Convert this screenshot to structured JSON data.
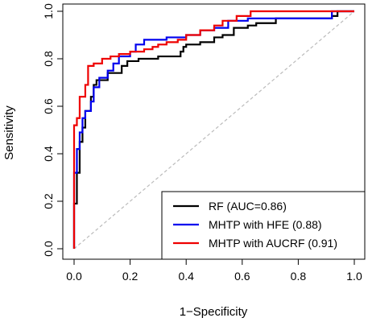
{
  "chart_data": {
    "type": "line",
    "title": "",
    "xlabel": "1−Specificity",
    "ylabel": "Sensitivity",
    "xlim": [
      0,
      1
    ],
    "ylim": [
      0,
      1
    ],
    "xticks": [
      "0.0",
      "0.2",
      "0.4",
      "0.6",
      "0.8",
      "1.0"
    ],
    "yticks": [
      "0.0",
      "0.2",
      "0.4",
      "0.6",
      "0.8",
      "1.0"
    ],
    "grid": false,
    "legend_position": "bottom-right",
    "reference_line": {
      "from": [
        0,
        0
      ],
      "to": [
        1,
        1
      ],
      "color": "#bbbbbb",
      "style": "dashed"
    },
    "series": [
      {
        "name": "RF (AUC=0.86)",
        "color": "#000000",
        "points": [
          [
            0,
            0
          ],
          [
            0,
            0.19
          ],
          [
            0.01,
            0.19
          ],
          [
            0.01,
            0.32
          ],
          [
            0.02,
            0.32
          ],
          [
            0.02,
            0.45
          ],
          [
            0.03,
            0.45
          ],
          [
            0.03,
            0.51
          ],
          [
            0.04,
            0.51
          ],
          [
            0.04,
            0.58
          ],
          [
            0.06,
            0.58
          ],
          [
            0.06,
            0.64
          ],
          [
            0.07,
            0.64
          ],
          [
            0.07,
            0.69
          ],
          [
            0.08,
            0.69
          ],
          [
            0.08,
            0.71
          ],
          [
            0.12,
            0.71
          ],
          [
            0.12,
            0.74
          ],
          [
            0.17,
            0.74
          ],
          [
            0.17,
            0.77
          ],
          [
            0.19,
            0.77
          ],
          [
            0.19,
            0.79
          ],
          [
            0.23,
            0.79
          ],
          [
            0.23,
            0.8
          ],
          [
            0.3,
            0.8
          ],
          [
            0.3,
            0.81
          ],
          [
            0.38,
            0.81
          ],
          [
            0.38,
            0.83
          ],
          [
            0.39,
            0.83
          ],
          [
            0.39,
            0.85
          ],
          [
            0.4,
            0.85
          ],
          [
            0.4,
            0.86
          ],
          [
            0.45,
            0.86
          ],
          [
            0.45,
            0.87
          ],
          [
            0.5,
            0.87
          ],
          [
            0.5,
            0.89
          ],
          [
            0.53,
            0.89
          ],
          [
            0.53,
            0.9
          ],
          [
            0.57,
            0.9
          ],
          [
            0.57,
            0.93
          ],
          [
            0.62,
            0.93
          ],
          [
            0.62,
            0.94
          ],
          [
            0.65,
            0.94
          ],
          [
            0.65,
            0.95
          ],
          [
            0.72,
            0.95
          ],
          [
            0.72,
            0.97
          ],
          [
            0.92,
            0.97
          ],
          [
            0.92,
            0.98
          ],
          [
            0.94,
            0.98
          ],
          [
            0.94,
            1
          ],
          [
            1,
            1
          ]
        ]
      },
      {
        "name": "MHTP with HFE (0.88)",
        "color": "#0000ee",
        "points": [
          [
            0,
            0
          ],
          [
            0,
            0.32
          ],
          [
            0.01,
            0.32
          ],
          [
            0.01,
            0.42
          ],
          [
            0.02,
            0.42
          ],
          [
            0.02,
            0.49
          ],
          [
            0.03,
            0.49
          ],
          [
            0.03,
            0.55
          ],
          [
            0.04,
            0.55
          ],
          [
            0.04,
            0.58
          ],
          [
            0.06,
            0.58
          ],
          [
            0.06,
            0.62
          ],
          [
            0.07,
            0.62
          ],
          [
            0.07,
            0.68
          ],
          [
            0.09,
            0.68
          ],
          [
            0.09,
            0.72
          ],
          [
            0.12,
            0.72
          ],
          [
            0.12,
            0.75
          ],
          [
            0.14,
            0.75
          ],
          [
            0.14,
            0.78
          ],
          [
            0.16,
            0.78
          ],
          [
            0.16,
            0.81
          ],
          [
            0.2,
            0.81
          ],
          [
            0.2,
            0.83
          ],
          [
            0.22,
            0.83
          ],
          [
            0.22,
            0.86
          ],
          [
            0.25,
            0.86
          ],
          [
            0.25,
            0.88
          ],
          [
            0.33,
            0.88
          ],
          [
            0.33,
            0.89
          ],
          [
            0.4,
            0.89
          ],
          [
            0.4,
            0.9
          ],
          [
            0.45,
            0.9
          ],
          [
            0.45,
            0.92
          ],
          [
            0.5,
            0.92
          ],
          [
            0.5,
            0.93
          ],
          [
            0.55,
            0.93
          ],
          [
            0.55,
            0.96
          ],
          [
            0.62,
            0.96
          ],
          [
            0.62,
            0.97
          ],
          [
            0.92,
            0.97
          ],
          [
            0.92,
            1
          ],
          [
            1,
            1
          ]
        ]
      },
      {
        "name": "MHTP with AUCRF (0.91)",
        "color": "#ee0000",
        "points": [
          [
            0,
            0
          ],
          [
            0,
            0.52
          ],
          [
            0.01,
            0.52
          ],
          [
            0.01,
            0.55
          ],
          [
            0.02,
            0.55
          ],
          [
            0.02,
            0.64
          ],
          [
            0.04,
            0.64
          ],
          [
            0.04,
            0.69
          ],
          [
            0.05,
            0.69
          ],
          [
            0.05,
            0.77
          ],
          [
            0.07,
            0.77
          ],
          [
            0.07,
            0.78
          ],
          [
            0.1,
            0.78
          ],
          [
            0.1,
            0.8
          ],
          [
            0.13,
            0.8
          ],
          [
            0.13,
            0.81
          ],
          [
            0.16,
            0.81
          ],
          [
            0.16,
            0.82
          ],
          [
            0.2,
            0.82
          ],
          [
            0.2,
            0.83
          ],
          [
            0.25,
            0.83
          ],
          [
            0.25,
            0.84
          ],
          [
            0.28,
            0.84
          ],
          [
            0.28,
            0.85
          ],
          [
            0.3,
            0.85
          ],
          [
            0.3,
            0.86
          ],
          [
            0.33,
            0.86
          ],
          [
            0.33,
            0.87
          ],
          [
            0.37,
            0.87
          ],
          [
            0.37,
            0.88
          ],
          [
            0.4,
            0.88
          ],
          [
            0.4,
            0.9
          ],
          [
            0.45,
            0.9
          ],
          [
            0.45,
            0.92
          ],
          [
            0.5,
            0.92
          ],
          [
            0.5,
            0.94
          ],
          [
            0.53,
            0.94
          ],
          [
            0.53,
            0.96
          ],
          [
            0.58,
            0.96
          ],
          [
            0.58,
            0.98
          ],
          [
            0.63,
            0.98
          ],
          [
            0.63,
            1
          ],
          [
            1,
            1
          ]
        ]
      }
    ]
  }
}
